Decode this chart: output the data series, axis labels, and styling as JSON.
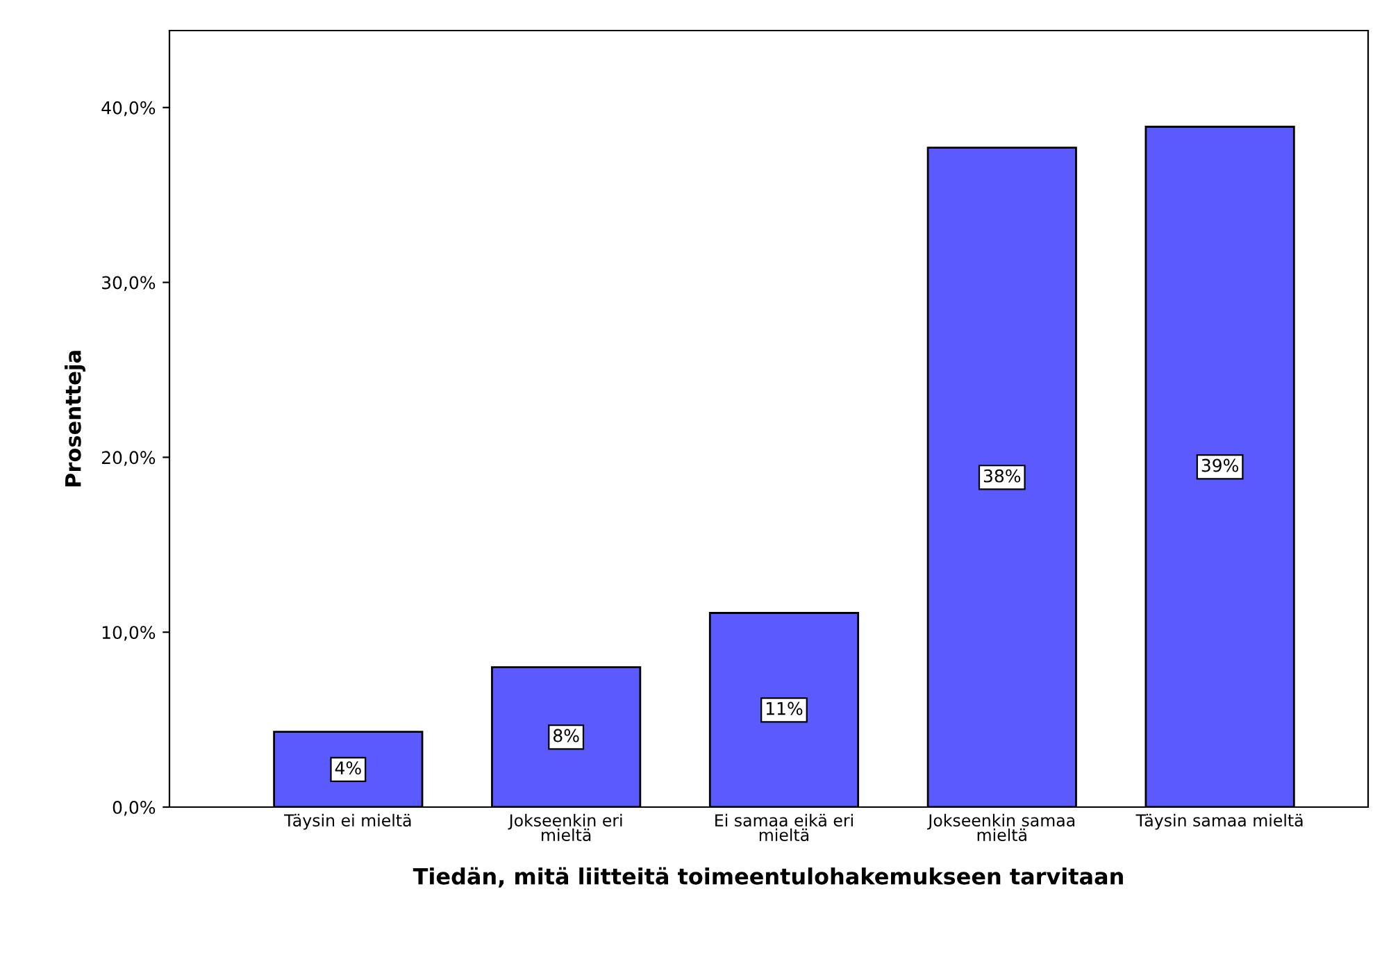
{
  "chart_data": {
    "type": "bar",
    "xlabel": "Tiedän, mitä liitteitä toimeentulohakemukseen tarvitaan",
    "ylabel": "Prosentteja",
    "categories": [
      "Täysin ei mieltä",
      "Jokseenkin eri mieltä",
      "Ei samaa eikä eri mieltä",
      "Jokseenkin samaa mieltä",
      "Täysin samaa mieltä"
    ],
    "values": [
      4.3,
      8.0,
      11.1,
      37.7,
      38.9
    ],
    "value_labels": [
      "4%",
      "8%",
      "11%",
      "38%",
      "39%"
    ],
    "color": "#5a5aff",
    "ylim": [
      0,
      44.4
    ],
    "yticks": [
      {
        "value": 0,
        "label": "0,0%"
      },
      {
        "value": 10,
        "label": "10,0%"
      },
      {
        "value": 20,
        "label": "20,0%"
      },
      {
        "value": 30,
        "label": "30,0%"
      },
      {
        "value": 40,
        "label": "40,0%"
      }
    ],
    "grid": false,
    "legend": false
  }
}
